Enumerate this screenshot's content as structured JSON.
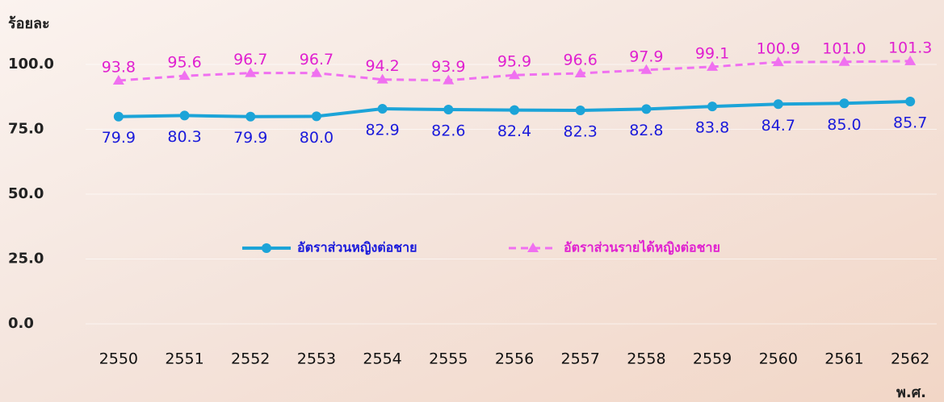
{
  "chart_data": {
    "type": "line",
    "y_axis_title": "ร้อยละ",
    "x_axis_title": "พ.ศ.",
    "categories": [
      "2550",
      "2551",
      "2552",
      "2553",
      "2554",
      "2555",
      "2556",
      "2557",
      "2558",
      "2559",
      "2560",
      "2561",
      "2562"
    ],
    "series": [
      {
        "name": "อัตราส่วนหญิงต่อชาย",
        "color": "#1ca4d8",
        "dashed": false,
        "marker": "circle",
        "values": [
          79.9,
          80.3,
          79.9,
          80.0,
          82.9,
          82.6,
          82.4,
          82.3,
          82.8,
          83.8,
          84.7,
          85.0,
          85.7
        ],
        "value_labels": [
          "79.9",
          "80.3",
          "79.9",
          "80.0",
          "82.9",
          "82.6",
          "82.4",
          "82.3",
          "82.8",
          "83.8",
          "84.7",
          "85.0",
          "85.7"
        ]
      },
      {
        "name": "อัตราส่วนรายได้หญิงต่อชาย",
        "color": "#f070f0",
        "dashed": true,
        "marker": "triangle",
        "values": [
          93.8,
          95.6,
          96.7,
          96.7,
          94.2,
          93.9,
          95.9,
          96.6,
          97.9,
          99.1,
          100.9,
          101.0,
          101.3
        ],
        "value_labels": [
          "93.8",
          "95.6",
          "96.7",
          "96.7",
          "94.2",
          "93.9",
          "95.9",
          "96.6",
          "97.9",
          "99.1",
          "100.9",
          "101.0",
          "101.3"
        ]
      }
    ],
    "ylim": [
      0,
      100
    ],
    "yticks": [
      {
        "value": 0,
        "label": "0.0"
      },
      {
        "value": 25,
        "label": "25.0"
      },
      {
        "value": 50,
        "label": "50.0"
      },
      {
        "value": 75,
        "label": "75.0"
      },
      {
        "value": 100,
        "label": "100.0"
      }
    ],
    "grid": true
  }
}
